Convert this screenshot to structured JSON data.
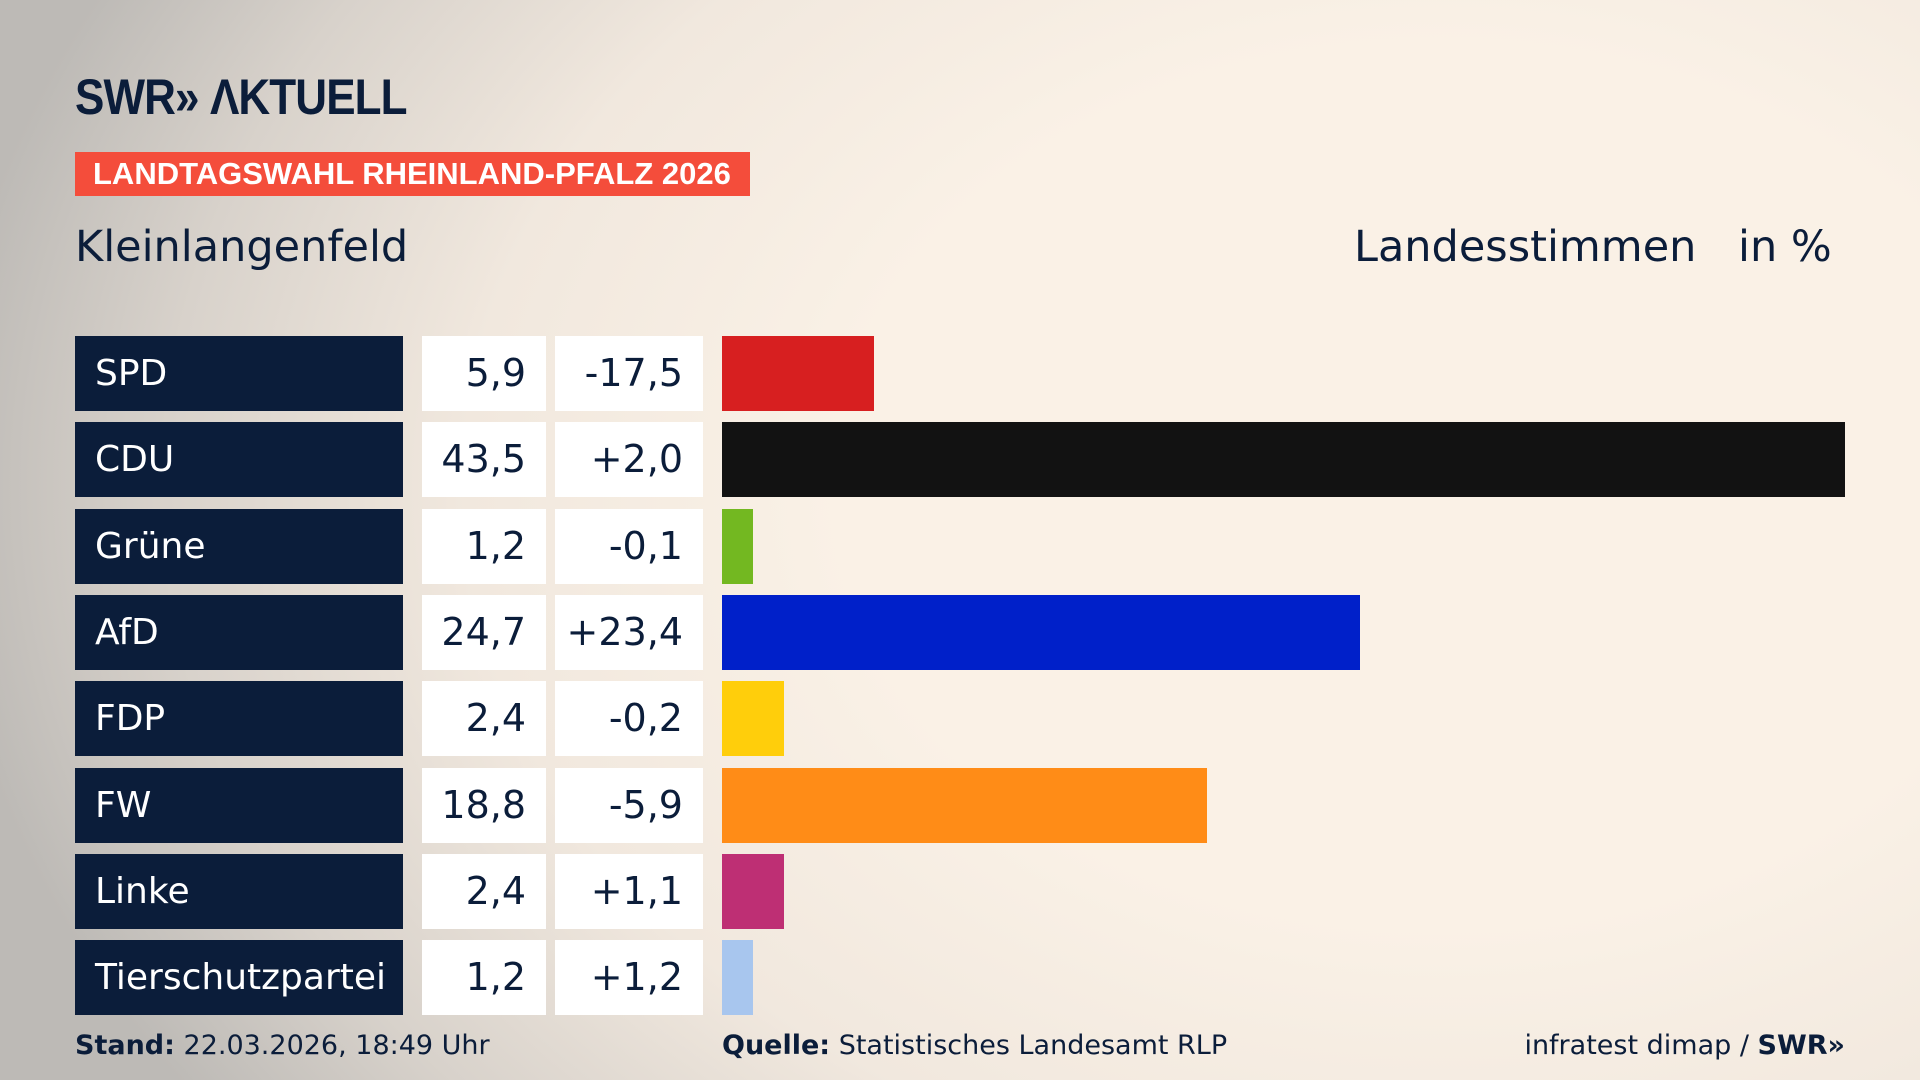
{
  "brand": {
    "logo": "SWR» ΛKTUELL"
  },
  "tag": "LANDTAGSWAHL RHEINLAND-PFALZ 2026",
  "location": "Kleinlangenfeld",
  "header": {
    "vote_type": "Landesstimmen",
    "unit": "in %"
  },
  "chart_data": {
    "type": "bar",
    "orientation": "horizontal",
    "categories": [
      "SPD",
      "CDU",
      "Grüne",
      "AfD",
      "FDP",
      "FW",
      "Linke",
      "Tierschutzpartei"
    ],
    "values": [
      5.9,
      43.5,
      1.2,
      24.7,
      2.4,
      18.8,
      2.4,
      1.2
    ],
    "value_labels": [
      "5,9",
      "43,5",
      "1,2",
      "24,7",
      "2,4",
      "18,8",
      "2,4",
      "1,2"
    ],
    "diff_labels": [
      "-17,5",
      "+2,0",
      "-0,1",
      "+23,4",
      "-0,2",
      "-5,9",
      "+1,1",
      "+1,2"
    ],
    "colors": [
      "#d71f20",
      "#121212",
      "#73b821",
      "#0020c9",
      "#ffce0b",
      "#ff8c17",
      "#be2f74",
      "#a8c6ee"
    ]
  },
  "footer": {
    "stand_label": "Stand:",
    "stand_value": "22.03.2026, 18:49 Uhr",
    "source_label": "Quelle:",
    "source_value": "Statistisches Landesamt RLP",
    "credit": "infratest dimap / ",
    "credit_brand": "SWR»"
  }
}
